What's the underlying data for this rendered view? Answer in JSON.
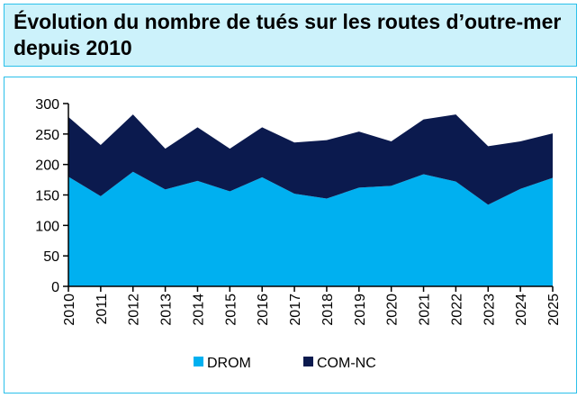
{
  "header": {
    "title": "Évolution du nombre de tués sur les routes d’outre-mer depuis 2010"
  },
  "colors": {
    "drom": "#00b0f0",
    "com_nc": "#0b1a4e",
    "frame": "#2bc0ea",
    "title_bg": "#ccf2fb"
  },
  "chart_data": {
    "type": "area",
    "stacked": true,
    "title": "Évolution du nombre de tués sur les routes d’outre-mer depuis 2010",
    "x": [
      "2010",
      "2011",
      "2012",
      "2013",
      "2014",
      "2015",
      "2016",
      "2017",
      "2018",
      "2019",
      "2020",
      "2021",
      "2022",
      "2023",
      "2024",
      "2025"
    ],
    "series": [
      {
        "name": "DROM",
        "values": [
          180,
          148,
          188,
          159,
          173,
          156,
          179,
          152,
          144,
          162,
          165,
          184,
          172,
          134,
          160,
          178
        ]
      },
      {
        "name": "COM-NC",
        "values": [
          98,
          84,
          94,
          67,
          88,
          70,
          82,
          84,
          96,
          92,
          73,
          90,
          110,
          96,
          78,
          73
        ]
      }
    ],
    "y_ticks": [
      "0",
      "50",
      "100",
      "150",
      "200",
      "250",
      "300"
    ],
    "ylim": [
      0,
      300
    ],
    "xlabel": "",
    "ylabel": "",
    "grid": false,
    "legend_position": "bottom"
  }
}
